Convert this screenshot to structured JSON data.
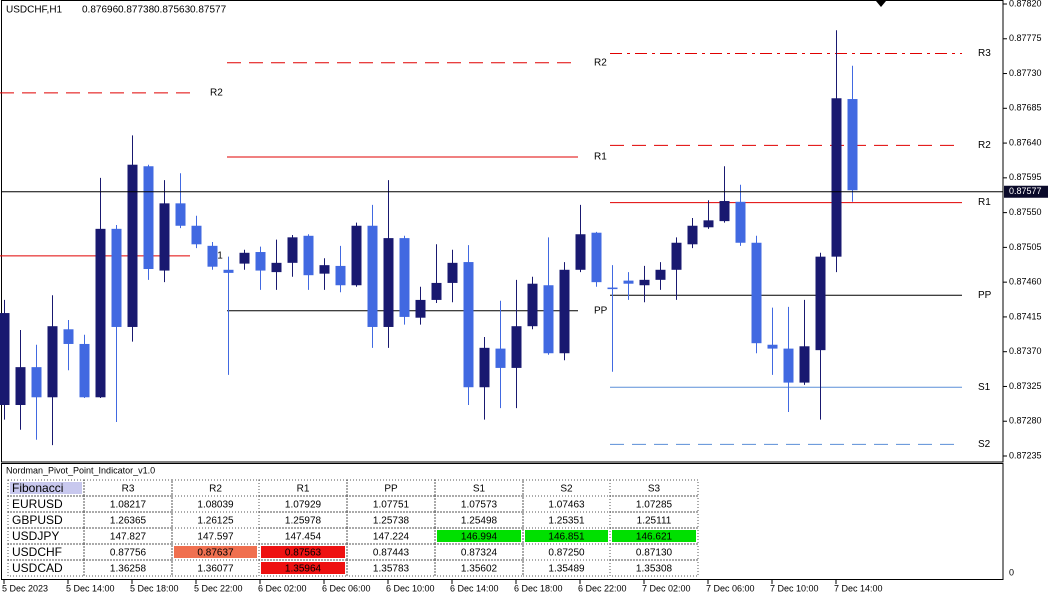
{
  "header": {
    "symbol": "USDCHF,H1",
    "open": 0.87696,
    "high": 0.87738,
    "low": 0.87563,
    "close": 0.87577
  },
  "chart_data": {
    "type": "candlestick",
    "categories": [
      "5 Dec 2023",
      null,
      null,
      null,
      "5 Dec 14:00",
      null,
      null,
      null,
      "5 Dec 18:00",
      null,
      null,
      null,
      "5 Dec 22:00",
      null,
      null,
      null,
      "6 Dec 02:00",
      null,
      null,
      null,
      "6 Dec 06:00",
      null,
      null,
      null,
      "6 Dec 10:00",
      null,
      null,
      null,
      "6 Dec 14:00",
      null,
      null,
      null,
      "6 Dec 18:00",
      null,
      null,
      null,
      "6 Dec 22:00",
      null,
      null,
      null,
      "7 Dec 02:00",
      null,
      null,
      null,
      "7 Dec 06:00",
      null,
      null,
      null,
      "7 Dec 10:00",
      null,
      null,
      null,
      "7 Dec 14:00",
      null
    ],
    "open": [
      0.87301,
      0.87301,
      0.8735,
      0.87311,
      0.87399,
      0.8738,
      0.87311,
      0.87529,
      0.87402,
      0.8761,
      0.87475,
      0.87562,
      0.87533,
      0.87507,
      0.87476,
      0.87484,
      0.87499,
      0.87473,
      0.87485,
      0.8752,
      0.87471,
      0.87481,
      0.87456,
      0.87533,
      0.87402,
      0.87517,
      0.87414,
      0.87437,
      0.87459,
      0.87486,
      0.87324,
      0.87374,
      0.87349,
      0.87403,
      0.87456,
      0.87368,
      0.87476,
      0.87524,
      0.87453,
      0.87462,
      0.87456,
      0.87463,
      0.87476,
      0.87509,
      0.87531,
      0.87539,
      0.87564,
      0.87511,
      0.87379,
      0.87374,
      0.8733,
      0.87372,
      0.87493,
      0.87697
    ],
    "high": [
      0.87437,
      0.87398,
      0.87379,
      0.87443,
      0.87411,
      0.87392,
      0.87595,
      0.87534,
      0.8765,
      0.87612,
      0.87592,
      0.87601,
      0.87546,
      0.87512,
      0.87493,
      0.87502,
      0.87506,
      0.87515,
      0.87521,
      0.87522,
      0.87491,
      0.87507,
      0.87537,
      0.8756,
      0.87592,
      0.8752,
      0.87454,
      0.87509,
      0.87502,
      0.87508,
      0.87389,
      0.87436,
      0.87463,
      0.87467,
      0.87518,
      0.87486,
      0.8756,
      0.87525,
      0.87482,
      0.87473,
      0.87481,
      0.87486,
      0.87518,
      0.87543,
      0.87566,
      0.8761,
      0.87586,
      0.8752,
      0.87427,
      0.87428,
      0.87437,
      0.87498,
      0.87786,
      0.8774
    ],
    "low": [
      0.87282,
      0.87269,
      0.87256,
      0.87249,
      0.87346,
      0.8731,
      0.8731,
      0.87279,
      0.87383,
      0.87463,
      0.8746,
      0.8753,
      0.87504,
      0.87476,
      0.8734,
      0.87476,
      0.8745,
      0.8745,
      0.87467,
      0.8745,
      0.8745,
      0.87447,
      0.87454,
      0.87375,
      0.87375,
      0.87405,
      0.87405,
      0.87433,
      0.87434,
      0.87301,
      0.87282,
      0.87297,
      0.87297,
      0.87399,
      0.87366,
      0.87359,
      0.87473,
      0.87454,
      0.87344,
      0.87437,
      0.87434,
      0.8745,
      0.87437,
      0.87504,
      0.87529,
      0.87537,
      0.87507,
      0.87368,
      0.8734,
      0.87292,
      0.87327,
      0.87282,
      0.87473,
      0.87564
    ],
    "close": [
      0.8742,
      0.8735,
      0.87311,
      0.87403,
      0.8738,
      0.87311,
      0.87529,
      0.87402,
      0.87612,
      0.87477,
      0.87562,
      0.87533,
      0.87509,
      0.8748,
      0.87472,
      0.87498,
      0.87475,
      0.87485,
      0.87518,
      0.87469,
      0.87482,
      0.87456,
      0.87533,
      0.87402,
      0.87517,
      0.87415,
      0.87437,
      0.87459,
      0.87485,
      0.87324,
      0.87375,
      0.87349,
      0.87403,
      0.87458,
      0.87368,
      0.87476,
      0.87522,
      0.8746,
      0.87451,
      0.87458,
      0.87463,
      0.87476,
      0.87511,
      0.87533,
      0.8754,
      0.87565,
      0.87511,
      0.87381,
      0.87374,
      0.8733,
      0.87377,
      0.87493,
      0.87698,
      0.87579
    ],
    "bull_color": "#191970",
    "bear_color": "#4169e1",
    "ylim": [
      0.87235,
      0.8782
    ],
    "yticks": [
      {
        "value": 0.8782,
        "label": "0.87820"
      },
      0.87775,
      {
        "value": 0.8773,
        "label": "0.87730"
      },
      0.87685,
      {
        "value": 0.8764,
        "label": "0.87640"
      },
      0.87595,
      {
        "value": 0.8755,
        "label": "0.87550"
      },
      0.87505,
      {
        "value": 0.8746,
        "label": "0.87460"
      },
      0.87415,
      {
        "value": 0.8737,
        "label": "0.87370"
      },
      0.87325,
      {
        "value": 0.8728,
        "label": "0.87280"
      },
      0.87235
    ],
    "pivots": [
      {
        "levels": [
          {
            "name": "R2",
            "value": 0.87705,
            "color": "#e00000",
            "style": "dash"
          },
          {
            "name": "R1",
            "value": 0.87494,
            "color": "#e00000",
            "style": "solid"
          }
        ]
      },
      {
        "levels": [
          {
            "name": "R2",
            "value": 0.87744,
            "color": "#e00000",
            "style": "dash"
          },
          {
            "name": "R1",
            "value": 0.87622,
            "color": "#e00000",
            "style": "solid"
          },
          {
            "name": "PP",
            "value": 0.87423,
            "color": "#000000",
            "style": "solid"
          }
        ]
      },
      {
        "levels": [
          {
            "name": "R3",
            "value": 0.87756,
            "color": "#e00000",
            "style": "dashdot"
          },
          {
            "name": "R2",
            "value": 0.87637,
            "color": "#e00000",
            "style": "dash"
          },
          {
            "name": "R1",
            "value": 0.87563,
            "color": "#e00000",
            "style": "solid"
          },
          {
            "name": "PP",
            "value": 0.87443,
            "color": "#000000",
            "style": "solid"
          },
          {
            "name": "S1",
            "value": 0.87324,
            "color": "#5b8fd8",
            "style": "solid"
          },
          {
            "name": "S2",
            "value": 0.8725,
            "color": "#5b8fd8",
            "style": "dash"
          }
        ]
      }
    ]
  },
  "indicator": {
    "title": "Nordman_Pivot_Point_Indicator_v1.0",
    "yticks": [
      0
    ],
    "header": [
      "Fibonacci",
      "R3",
      "R2",
      "R1",
      "PP",
      "S1",
      "S2",
      "S3"
    ],
    "rows": [
      [
        "EURUSD",
        "1.08217",
        "1.08039",
        "1.07929",
        "1.07751",
        "1.07573",
        "1.07463",
        "1.07285"
      ],
      [
        "GBPUSD",
        "1.26365",
        "1.26125",
        "1.25978",
        "1.25738",
        "1.25498",
        "1.25351",
        "1.25111"
      ],
      [
        "USDJPY",
        "147.827",
        "147.597",
        "147.454",
        "147.224",
        "146.994",
        "146.851",
        "146.621"
      ],
      [
        "USDCHF",
        "0.87756",
        "0.87637",
        "0.87563",
        "0.87443",
        "0.87324",
        "0.87250",
        "0.87130"
      ],
      [
        "USDCAD",
        "1.36258",
        "1.36077",
        "1.35964",
        "1.35783",
        "1.35602",
        "1.35489",
        "1.35308"
      ]
    ],
    "highlights": [
      {
        "row": 2,
        "col": 5,
        "color": "#00e000"
      },
      {
        "row": 2,
        "col": 6,
        "color": "#00e000"
      },
      {
        "row": 2,
        "col": 7,
        "color": "#00e000"
      },
      {
        "row": 3,
        "col": 2,
        "color": "#f07050"
      },
      {
        "row": 3,
        "col": 3,
        "color": "#ee1111"
      },
      {
        "row": 4,
        "col": 3,
        "color": "#ee1111"
      }
    ]
  }
}
